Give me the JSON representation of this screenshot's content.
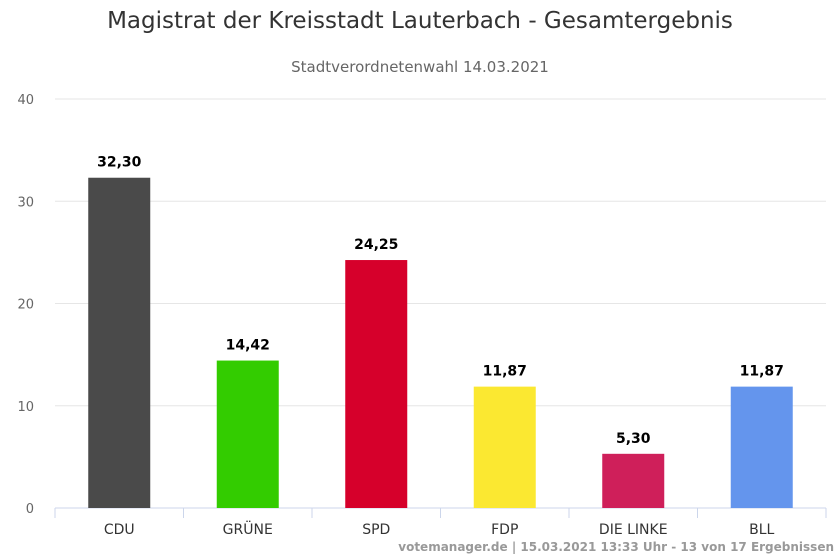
{
  "chart_data": {
    "type": "bar",
    "title": "Magistrat der Kreisstadt Lauterbach - Gesamtergebnis",
    "subtitle": "Stadtverordnetenwahl 14.03.2021",
    "categories": [
      "CDU",
      "GRÜNE",
      "SPD",
      "FDP",
      "DIE LINKE",
      "BLL"
    ],
    "values": [
      32.3,
      14.42,
      24.25,
      11.87,
      5.3,
      11.87
    ],
    "value_labels": [
      "32,30",
      "14,42",
      "24,25",
      "11,87",
      "5,30",
      "11,87"
    ],
    "colors": [
      "#4a4a4a",
      "#33cc00",
      "#d6002b",
      "#fbe831",
      "#cf1f5a",
      "#6495ed"
    ],
    "ylim": [
      0,
      40
    ],
    "yticks": [
      0,
      10,
      20,
      30,
      40
    ],
    "grid": true,
    "legend": "none",
    "xlabel": "",
    "ylabel": ""
  },
  "credits": "votemanager.de | 15.03.2021 13:33 Uhr - 13 von 17 Ergebnissen"
}
